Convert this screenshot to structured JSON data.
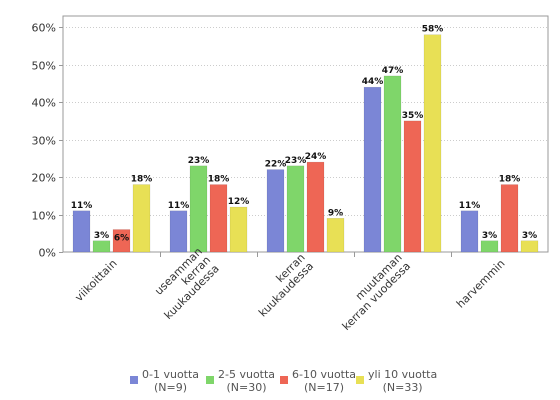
{
  "chart_data": {
    "type": "bar",
    "categories": [
      [
        "viikoittain"
      ],
      [
        "useamman",
        "kerran",
        "kuukaudessa"
      ],
      [
        "kerran",
        "kuukaudessa"
      ],
      [
        "muutaman",
        "kerran vuodessa"
      ],
      [
        "harvemmin"
      ]
    ],
    "series": [
      {
        "name": "0-1 vuotta",
        "n": "(N=9)",
        "color": "#7b86d6",
        "values": [
          11,
          11,
          22,
          44,
          11
        ]
      },
      {
        "name": "2-5 vuotta",
        "n": "(N=30)",
        "color": "#7fd66a",
        "values": [
          3,
          23,
          23,
          47,
          3
        ]
      },
      {
        "name": "6-10 vuotta",
        "n": "(N=17)",
        "color": "#ee6655",
        "values": [
          6,
          18,
          24,
          35,
          18
        ]
      },
      {
        "name": "yli 10 vuotta",
        "n": "(N=33)",
        "color": "#e8e055",
        "values": [
          18,
          12,
          9,
          58,
          3
        ]
      }
    ],
    "ylim": [
      0,
      63
    ],
    "yticks": [
      0,
      10,
      20,
      30,
      40,
      50,
      60
    ],
    "value_suffix": "%",
    "grid": true,
    "legend_position": "bottom"
  }
}
